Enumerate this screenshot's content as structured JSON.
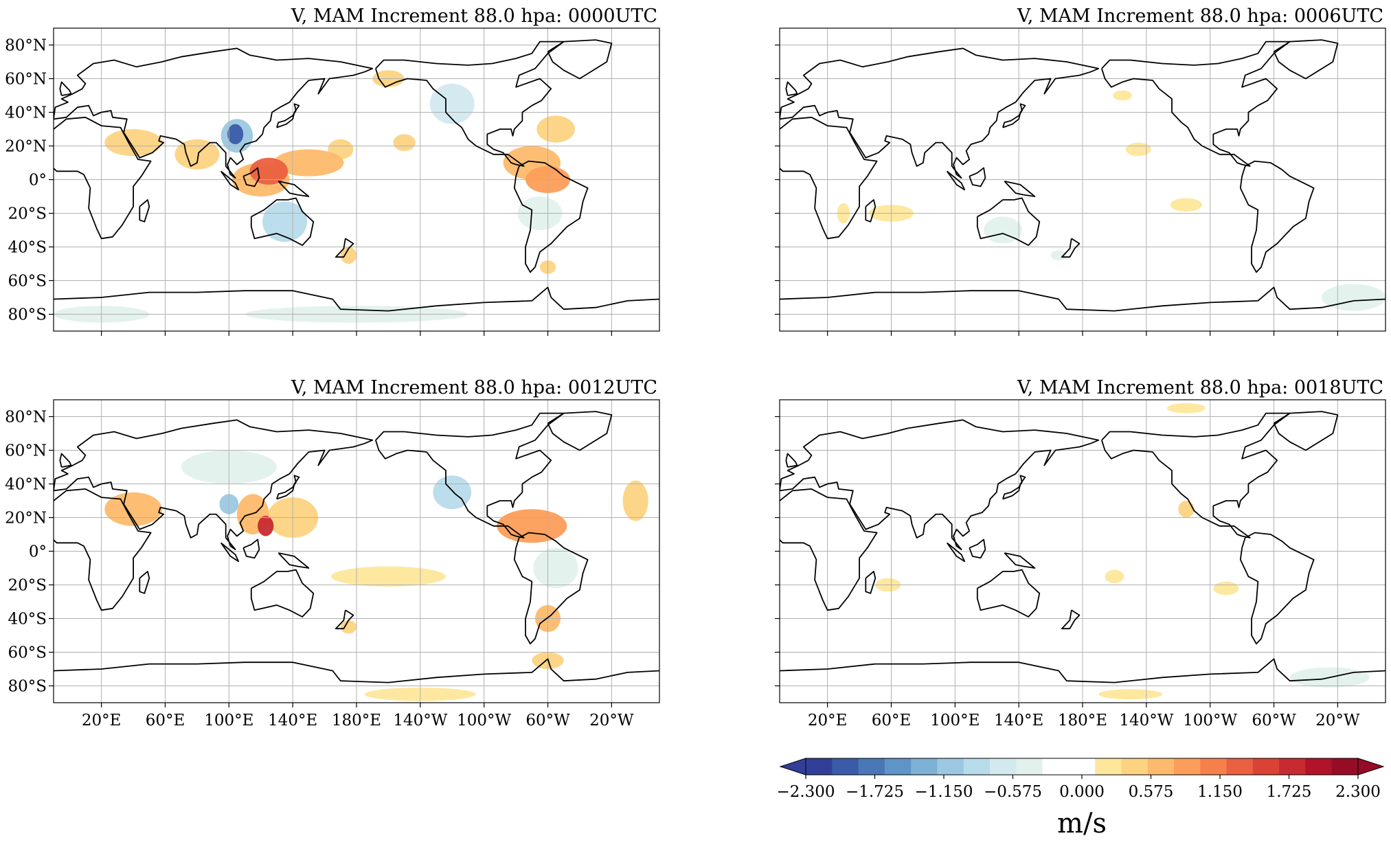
{
  "panels": [
    {
      "id": "p0000",
      "title": "V, MAM Increment 88.0 hpa: 0000UTC"
    },
    {
      "id": "p0006",
      "title": "V, MAM Increment 88.0 hpa: 0006UTC"
    },
    {
      "id": "p0012",
      "title": "V, MAM Increment 88.0 hpa: 0012UTC"
    },
    {
      "id": "p0018",
      "title": "V, MAM Increment 88.0 hpa: 0018UTC"
    }
  ],
  "axes": {
    "lat_ticks": [
      "80°N",
      "60°N",
      "40°N",
      "20°N",
      "0°",
      "20°S",
      "40°S",
      "60°S",
      "80°S"
    ],
    "lon_ticks": [
      "20°E",
      "60°E",
      "100°E",
      "140°E",
      "180°E",
      "140°W",
      "100°W",
      "60°W",
      "20°W"
    ]
  },
  "colorbar": {
    "unit": "m/s",
    "tick_labels": [
      "−2.300",
      "−1.725",
      "−1.150",
      "−0.575",
      "0.000",
      "0.575",
      "1.150",
      "1.725",
      "2.300"
    ],
    "colors": [
      "#323f98",
      "#3b5ba8",
      "#4a78b6",
      "#5f95c6",
      "#7cb0d5",
      "#9bc8e0",
      "#b8dbea",
      "#d2e9ef",
      "#e3f1ec",
      "#ffffff",
      "#ffffff",
      "#fee79b",
      "#fdd382",
      "#fdba6c",
      "#fc9e59",
      "#f5804b",
      "#ea6040",
      "#d94234",
      "#c72a30",
      "#b1132a",
      "#960c26"
    ],
    "extend": "both"
  },
  "chart_data": {
    "type": "heatmap",
    "variable": "V",
    "unit": "m/s",
    "vmin": -2.3,
    "vmax": 2.3,
    "levels": [
      -2.3,
      -2.07,
      -1.84,
      -1.61,
      -1.38,
      -1.15,
      -0.92,
      -0.69,
      -0.46,
      -0.23,
      0.0,
      0.23,
      0.46,
      0.69,
      0.92,
      1.15,
      1.38,
      1.61,
      1.84,
      2.07,
      2.3
    ],
    "lon_range": [
      -10,
      370
    ],
    "lat_range": [
      -90,
      90
    ],
    "panels": [
      {
        "title": "V, MAM Increment 88.0 hpa: 0000UTC",
        "blobs": [
          {
            "lon": 104,
            "lat": 27,
            "rx": 5,
            "ry": 6,
            "v": -1.9
          },
          {
            "lon": 105,
            "lat": 26,
            "rx": 10,
            "ry": 10,
            "v": -1.0
          },
          {
            "lon": 80,
            "lat": 15,
            "rx": 14,
            "ry": 9,
            "v": 0.5
          },
          {
            "lon": 40,
            "lat": 22,
            "rx": 18,
            "ry": 8,
            "v": 0.5
          },
          {
            "lon": 125,
            "lat": 5,
            "rx": 12,
            "ry": 8,
            "v": 1.5
          },
          {
            "lon": 120,
            "lat": 0,
            "rx": 18,
            "ry": 10,
            "v": 0.8
          },
          {
            "lon": 150,
            "lat": 10,
            "rx": 22,
            "ry": 8,
            "v": 0.8
          },
          {
            "lon": 170,
            "lat": 18,
            "rx": 8,
            "ry": 6,
            "v": 0.5
          },
          {
            "lon": 210,
            "lat": 22,
            "rx": 7,
            "ry": 5,
            "v": 0.6
          },
          {
            "lon": 135,
            "lat": -25,
            "rx": 14,
            "ry": 12,
            "v": -0.7
          },
          {
            "lon": 290,
            "lat": 10,
            "rx": 18,
            "ry": 10,
            "v": 0.8
          },
          {
            "lon": 300,
            "lat": 0,
            "rx": 14,
            "ry": 8,
            "v": 1.0
          },
          {
            "lon": 305,
            "lat": 30,
            "rx": 12,
            "ry": 8,
            "v": 0.6
          },
          {
            "lon": 240,
            "lat": 45,
            "rx": 14,
            "ry": 12,
            "v": -0.5
          },
          {
            "lon": 200,
            "lat": 60,
            "rx": 10,
            "ry": 5,
            "v": 0.5
          },
          {
            "lon": 295,
            "lat": -20,
            "rx": 14,
            "ry": 10,
            "v": -0.4
          },
          {
            "lon": 175,
            "lat": -45,
            "rx": 5,
            "ry": 5,
            "v": 0.6
          },
          {
            "lon": 300,
            "lat": -52,
            "rx": 5,
            "ry": 4,
            "v": 0.6
          },
          {
            "lon": 180,
            "lat": -80,
            "rx": 70,
            "ry": 5,
            "v": -0.2
          },
          {
            "lon": 20,
            "lat": -80,
            "rx": 30,
            "ry": 5,
            "v": -0.2
          }
        ]
      },
      {
        "title": "V, MAM Increment 88.0 hpa: 0006UTC",
        "blobs": [
          {
            "lon": 130,
            "lat": -30,
            "rx": 12,
            "ry": 8,
            "v": -0.3
          },
          {
            "lon": 60,
            "lat": -20,
            "rx": 14,
            "ry": 5,
            "v": 0.3
          },
          {
            "lon": 30,
            "lat": -20,
            "rx": 4,
            "ry": 6,
            "v": 0.4
          },
          {
            "lon": 245,
            "lat": -15,
            "rx": 10,
            "ry": 4,
            "v": 0.4
          },
          {
            "lon": 215,
            "lat": 18,
            "rx": 8,
            "ry": 4,
            "v": 0.3
          },
          {
            "lon": 205,
            "lat": 50,
            "rx": 6,
            "ry": 3,
            "v": 0.3
          },
          {
            "lon": 165,
            "lat": -45,
            "rx": 5,
            "ry": 3,
            "v": -0.2
          },
          {
            "lon": 350,
            "lat": -70,
            "rx": 20,
            "ry": 8,
            "v": -0.2
          }
        ]
      },
      {
        "title": "V, MAM Increment 88.0 hpa: 0012UTC",
        "blobs": [
          {
            "lon": 115,
            "lat": 22,
            "rx": 10,
            "ry": 12,
            "v": 0.8
          },
          {
            "lon": 123,
            "lat": 15,
            "rx": 5,
            "ry": 6,
            "v": 2.0
          },
          {
            "lon": 100,
            "lat": 28,
            "rx": 6,
            "ry": 6,
            "v": -1.0
          },
          {
            "lon": 40,
            "lat": 25,
            "rx": 18,
            "ry": 10,
            "v": 0.7
          },
          {
            "lon": 140,
            "lat": 20,
            "rx": 16,
            "ry": 12,
            "v": 0.6
          },
          {
            "lon": 200,
            "lat": -15,
            "rx": 36,
            "ry": 6,
            "v": 0.4
          },
          {
            "lon": 290,
            "lat": 15,
            "rx": 22,
            "ry": 10,
            "v": 1.0
          },
          {
            "lon": 305,
            "lat": -10,
            "rx": 14,
            "ry": 12,
            "v": -0.4
          },
          {
            "lon": 300,
            "lat": -40,
            "rx": 8,
            "ry": 8,
            "v": 0.8
          },
          {
            "lon": 300,
            "lat": -65,
            "rx": 10,
            "ry": 5,
            "v": 0.6
          },
          {
            "lon": 240,
            "lat": 35,
            "rx": 12,
            "ry": 10,
            "v": -0.8
          },
          {
            "lon": 100,
            "lat": 50,
            "rx": 30,
            "ry": 10,
            "v": -0.2
          },
          {
            "lon": 355,
            "lat": 30,
            "rx": 8,
            "ry": 12,
            "v": 0.5
          },
          {
            "lon": 175,
            "lat": -45,
            "rx": 5,
            "ry": 4,
            "v": 0.6
          },
          {
            "lon": 220,
            "lat": -85,
            "rx": 35,
            "ry": 4,
            "v": 0.3
          }
        ]
      },
      {
        "title": "V, MAM Increment 88.0 hpa: 0018UTC",
        "blobs": [
          {
            "lon": 245,
            "lat": 25,
            "rx": 5,
            "ry": 5,
            "v": 0.5
          },
          {
            "lon": 58,
            "lat": -20,
            "rx": 8,
            "ry": 4,
            "v": 0.3
          },
          {
            "lon": 200,
            "lat": -15,
            "rx": 6,
            "ry": 4,
            "v": 0.4
          },
          {
            "lon": 270,
            "lat": -22,
            "rx": 8,
            "ry": 4,
            "v": 0.4
          },
          {
            "lon": 245,
            "lat": 85,
            "rx": 12,
            "ry": 3,
            "v": 0.3
          },
          {
            "lon": 335,
            "lat": -75,
            "rx": 25,
            "ry": 6,
            "v": -0.2
          },
          {
            "lon": 210,
            "lat": -85,
            "rx": 20,
            "ry": 3,
            "v": 0.3
          }
        ]
      }
    ]
  }
}
